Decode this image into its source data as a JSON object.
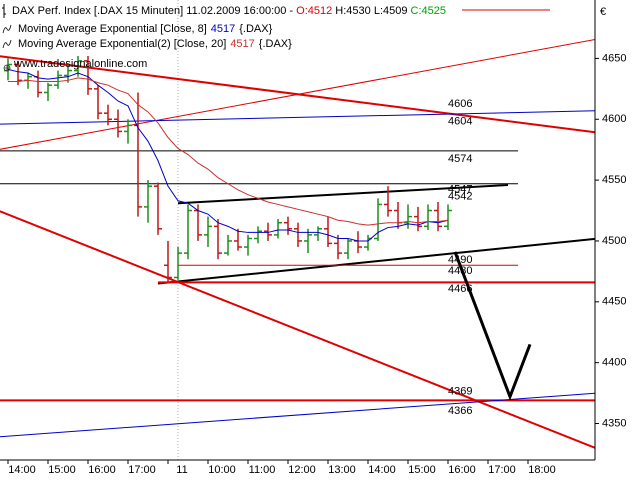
{
  "chart_data": {
    "type": "ohlc",
    "title": "DAX Perf. Index [.DAX  15 Minuten]",
    "date": "11.02.2009 16:00:00 -",
    "header_values": [
      {
        "text": "O:4512",
        "color": "#e00000"
      },
      {
        "text": "H:4530",
        "color": "#000000"
      },
      {
        "text": "L:4509",
        "color": "#000000"
      },
      {
        "text": "C:4525",
        "color": "#00a000"
      }
    ],
    "website": "www.tradesignalonline.com",
    "currency": "€",
    "categories": [
      "14:00",
      null,
      null,
      null,
      "15:00",
      null,
      null,
      null,
      "16:00",
      null,
      null,
      null,
      "17:00",
      null,
      null,
      null,
      "11",
      null,
      null,
      null,
      "10:00",
      null,
      null,
      null,
      "11:00",
      null,
      null,
      null,
      "12:00",
      null,
      null,
      null,
      "13:00",
      null,
      null,
      null,
      "14:00",
      null,
      null,
      null,
      "15:00",
      null,
      null,
      null,
      "16:00",
      null,
      null,
      null,
      "17:00",
      null,
      null,
      null,
      "18:00",
      null,
      null,
      null,
      null,
      null,
      null,
      null
    ],
    "open": [
      4640,
      4645,
      4632,
      4635,
      4622,
      4628,
      4636,
      4640,
      4648,
      4625,
      4605,
      4600,
      4590,
      4595,
      4528,
      4545,
      4480,
      4470,
      4490,
      4525,
      4505,
      4512,
      4490,
      4500,
      4495,
      4502,
      4508,
      4505,
      4515,
      4510,
      4500,
      4505,
      4510,
      4498,
      4490,
      4500,
      4495,
      4502,
      4530,
      4525,
      4515,
      4520,
      4512,
      4525,
      4512,
      null,
      null,
      null,
      null,
      null,
      null,
      null,
      null,
      null,
      null,
      null,
      null,
      null,
      null,
      null
    ],
    "high": [
      4650,
      4648,
      4638,
      4640,
      4630,
      4640,
      4645,
      4652,
      4652,
      4628,
      4612,
      4608,
      4600,
      4622,
      4550,
      4548,
      4500,
      4495,
      4530,
      4530,
      4520,
      4518,
      4505,
      4510,
      4505,
      4512,
      4515,
      4518,
      4520,
      4515,
      4510,
      4512,
      4520,
      4505,
      4502,
      4508,
      4505,
      4535,
      4545,
      4532,
      4530,
      4528,
      4530,
      4532,
      4530,
      null,
      null,
      null,
      null,
      null,
      null,
      null,
      null,
      null,
      null,
      null,
      null,
      null,
      null,
      null
    ],
    "low": [
      4632,
      4628,
      4625,
      4618,
      4615,
      4625,
      4630,
      4635,
      4620,
      4600,
      4595,
      4585,
      4580,
      4520,
      4515,
      4505,
      4465,
      4468,
      4485,
      4500,
      4495,
      4485,
      4488,
      4492,
      4488,
      4498,
      4500,
      4502,
      4505,
      4495,
      4490,
      4500,
      4495,
      4485,
      4485,
      4490,
      4492,
      4500,
      4520,
      4510,
      4510,
      4508,
      4509,
      4508,
      4509,
      null,
      null,
      null,
      null,
      null,
      null,
      null,
      null,
      null,
      null,
      null,
      null,
      null,
      null,
      null
    ],
    "close": [
      4645,
      4632,
      4635,
      4622,
      4628,
      4636,
      4640,
      4648,
      4625,
      4605,
      4600,
      4590,
      4595,
      4528,
      4545,
      4510,
      4470,
      4490,
      4525,
      4505,
      4512,
      4490,
      4500,
      4495,
      4502,
      4508,
      4505,
      4515,
      4510,
      4500,
      4505,
      4510,
      4498,
      4490,
      4500,
      4495,
      4502,
      4530,
      4525,
      4515,
      4520,
      4512,
      4525,
      4512,
      4525,
      null,
      null,
      null,
      null,
      null,
      null,
      null,
      null,
      null,
      null,
      null,
      null,
      null,
      null,
      null
    ],
    "up_color": "#1f8f1f",
    "down_color": "#c01818",
    "series": [
      {
        "name": "Moving Average Exponential [Close, 8]",
        "legend_value": "4517",
        "legend_suffix": "{.DAX}",
        "color": "#0000cc",
        "values": [
          4641,
          4639,
          4638,
          4634,
          4633,
          4634,
          4635,
          4638,
          4635,
          4628,
          4622,
          4615,
          4611,
          4593,
          4582,
          4566,
          4545,
          4533,
          4531,
          4525,
          4522,
          4515,
          4512,
          4508,
          4507,
          4507,
          4507,
          4509,
          4509,
          4507,
          4507,
          4507,
          4505,
          4502,
          4502,
          4500,
          4500,
          4507,
          4511,
          4512,
          4514,
          4513,
          4516,
          4515,
          4517,
          null,
          null,
          null,
          null,
          null,
          null,
          null,
          null,
          null,
          null,
          null,
          null,
          null,
          null,
          null
        ]
      },
      {
        "name": "Moving Average Exponential(2) [Close, 20]",
        "legend_value": "4517",
        "legend_suffix": "{.DAX}",
        "color": "#cc3030",
        "values": [
          4631,
          4631,
          4632,
          4631,
          4631,
          4631,
          4632,
          4634,
          4633,
          4630,
          4628,
          4624,
          4621,
          4612,
          4606,
          4597,
          4585,
          4576,
          4571,
          4564,
          4559,
          4552,
          4547,
          4542,
          4538,
          4535,
          4532,
          4530,
          4528,
          4526,
          4524,
          4522,
          4520,
          4517,
          4516,
          4514,
          4513,
          4514,
          4515,
          4515,
          4516,
          4515,
          4516,
          4516,
          4517,
          null,
          null,
          null,
          null,
          null,
          null,
          null,
          null,
          null,
          null,
          null,
          null,
          null,
          null,
          null
        ]
      }
    ],
    "lines": [
      {
        "color": "#e00000",
        "width": 2,
        "points": [
          [
            -1,
            4652
          ],
          [
            59,
            4589
          ]
        ],
        "label": 4606
      },
      {
        "color": "#e00000",
        "width": 1,
        "points": [
          [
            -1,
            4575
          ],
          [
            59,
            4666
          ]
        ]
      },
      {
        "color": "#0000cc",
        "width": 1,
        "points": [
          [
            -1,
            4596
          ],
          [
            59,
            4607
          ]
        ],
        "label": 4604
      },
      {
        "color": "#000000",
        "width": 1,
        "points": [
          [
            -1,
            4574
          ],
          [
            51,
            4574
          ]
        ],
        "label": 4574
      },
      {
        "color": "#000000",
        "width": 1,
        "points": [
          [
            -1,
            4547
          ],
          [
            51,
            4547
          ]
        ],
        "label": 4547
      },
      {
        "color": "#000000",
        "width": 2,
        "points": [
          [
            17,
            4531
          ],
          [
            50,
            4546
          ]
        ],
        "label": 4542
      },
      {
        "color": "#000000",
        "width": 2,
        "points": [
          [
            15,
            4465
          ],
          [
            59,
            4502
          ]
        ],
        "label": 4490
      },
      {
        "color": "#e00000",
        "width": 1,
        "points": [
          [
            17,
            4480
          ],
          [
            51,
            4480
          ]
        ],
        "label": 4480
      },
      {
        "color": "#e00000",
        "width": 2,
        "points": [
          [
            15,
            4466
          ],
          [
            59,
            4466
          ]
        ],
        "label": 4466
      },
      {
        "color": "#e00000",
        "width": 2,
        "points": [
          [
            -1,
            4525
          ],
          [
            59,
            4329
          ]
        ]
      },
      {
        "color": "#e00000",
        "width": 2,
        "points": [
          [
            -1,
            4369
          ],
          [
            59,
            4369
          ]
        ],
        "label": 4369
      },
      {
        "color": "#0000cc",
        "width": 1,
        "points": [
          [
            -1,
            4339
          ],
          [
            59,
            4375
          ]
        ],
        "label": 4366
      },
      {
        "color": "#000000",
        "width": 3,
        "points": [
          [
            44.7,
            4491
          ],
          [
            50.2,
            4372
          ],
          [
            52.2,
            4415
          ]
        ]
      }
    ],
    "ylim": [
      4320,
      4698
    ],
    "yticks": [
      4350,
      4400,
      4450,
      4500,
      4550,
      4600,
      4650
    ]
  }
}
